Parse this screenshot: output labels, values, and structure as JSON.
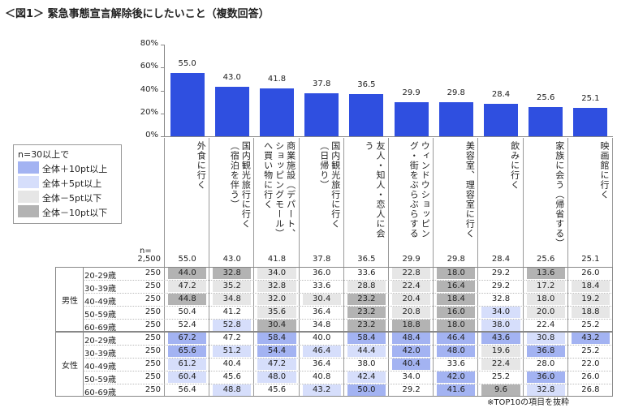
{
  "title": "＜図1＞ 緊急事態宣言解除後にしたいこと（複数回答）",
  "chart_data": {
    "type": "bar",
    "categories": [
      "外食に行く",
      "国内観光旅行に行く（宿泊を伴う）",
      "商業施設（デパート、ショッピングモール）へ買い物に行く",
      "国内観光旅行に行く（日帰り）",
      "友人・知人・恋人に会う",
      "ウィンドウショッピング・街をぶらぶらする",
      "美容室、理容室に行く",
      "飲みに行く",
      "家族に会う（帰省する）",
      "映画館に行く"
    ],
    "values": [
      55.0,
      43.0,
      41.8,
      37.8,
      36.5,
      29.9,
      29.8,
      28.4,
      25.6,
      25.1
    ],
    "value_labels": [
      "55.0",
      "43.0",
      "41.8",
      "37.8",
      "36.5",
      "29.9",
      "29.8",
      "28.4",
      "25.6",
      "25.1"
    ],
    "color": "#2f4fe0",
    "ylim": [
      0,
      80
    ],
    "yticks": [
      {
        "value": 0,
        "label": "0%"
      },
      {
        "value": 20,
        "label": "20%"
      },
      {
        "value": 40,
        "label": "40%"
      },
      {
        "value": 60,
        "label": "60%"
      },
      {
        "value": 80,
        "label": "80%"
      }
    ]
  },
  "legend": {
    "title": "n=30以上で",
    "items": [
      {
        "label": "全体＋10pt以上",
        "color": "#a3b3f2"
      },
      {
        "label": "全体＋5pt以上",
        "color": "#d6defb"
      },
      {
        "label": "全体－5pt以下",
        "color": "#e6e6e6"
      },
      {
        "label": "全体－10pt以下",
        "color": "#b3b3b3"
      }
    ]
  },
  "table": {
    "n_header": "n=",
    "total_n": "2,500",
    "groups": [
      {
        "label": "男性",
        "rows": [
          {
            "age": "20-29歳",
            "n": "250",
            "values": [
              "44.0",
              "32.8",
              "34.0",
              "36.0",
              "33.6",
              "22.8",
              "18.0",
              "29.2",
              "13.6",
              "26.0"
            ]
          },
          {
            "age": "30-39歳",
            "n": "250",
            "values": [
              "47.2",
              "35.2",
              "32.8",
              "33.6",
              "28.8",
              "22.4",
              "16.4",
              "29.2",
              "17.2",
              "18.4"
            ]
          },
          {
            "age": "40-49歳",
            "n": "250",
            "values": [
              "44.8",
              "34.8",
              "32.0",
              "30.4",
              "23.2",
              "20.4",
              "18.4",
              "32.8",
              "18.0",
              "19.2"
            ]
          },
          {
            "age": "50-59歳",
            "n": "250",
            "values": [
              "50.4",
              "41.2",
              "35.6",
              "36.4",
              "23.2",
              "20.8",
              "16.0",
              "34.0",
              "20.0",
              "18.8"
            ]
          },
          {
            "age": "60-69歳",
            "n": "250",
            "values": [
              "52.4",
              "52.8",
              "30.4",
              "34.8",
              "23.2",
              "18.8",
              "18.0",
              "38.0",
              "22.4",
              "25.2"
            ]
          }
        ]
      },
      {
        "label": "女性",
        "rows": [
          {
            "age": "20-29歳",
            "n": "250",
            "values": [
              "67.2",
              "47.2",
              "58.4",
              "40.0",
              "58.4",
              "48.4",
              "46.4",
              "43.6",
              "30.8",
              "43.2"
            ]
          },
          {
            "age": "30-39歳",
            "n": "250",
            "values": [
              "65.6",
              "51.2",
              "54.4",
              "46.4",
              "44.4",
              "42.0",
              "48.0",
              "19.6",
              "36.8",
              "25.2"
            ]
          },
          {
            "age": "40-49歳",
            "n": "250",
            "values": [
              "61.2",
              "40.4",
              "47.2",
              "36.4",
              "38.0",
              "40.4",
              "33.6",
              "22.4",
              "28.0",
              "22.0"
            ]
          },
          {
            "age": "50-59歳",
            "n": "250",
            "values": [
              "60.4",
              "45.6",
              "48.0",
              "40.8",
              "42.4",
              "34.0",
              "42.0",
              "25.2",
              "36.0",
              "26.0"
            ]
          },
          {
            "age": "60-69歳",
            "n": "250",
            "values": [
              "56.4",
              "48.8",
              "45.6",
              "43.2",
              "50.0",
              "29.2",
              "41.6",
              "9.6",
              "32.8",
              "26.8"
            ]
          }
        ]
      }
    ]
  },
  "footnote": "※TOP10の項目を抜粋"
}
